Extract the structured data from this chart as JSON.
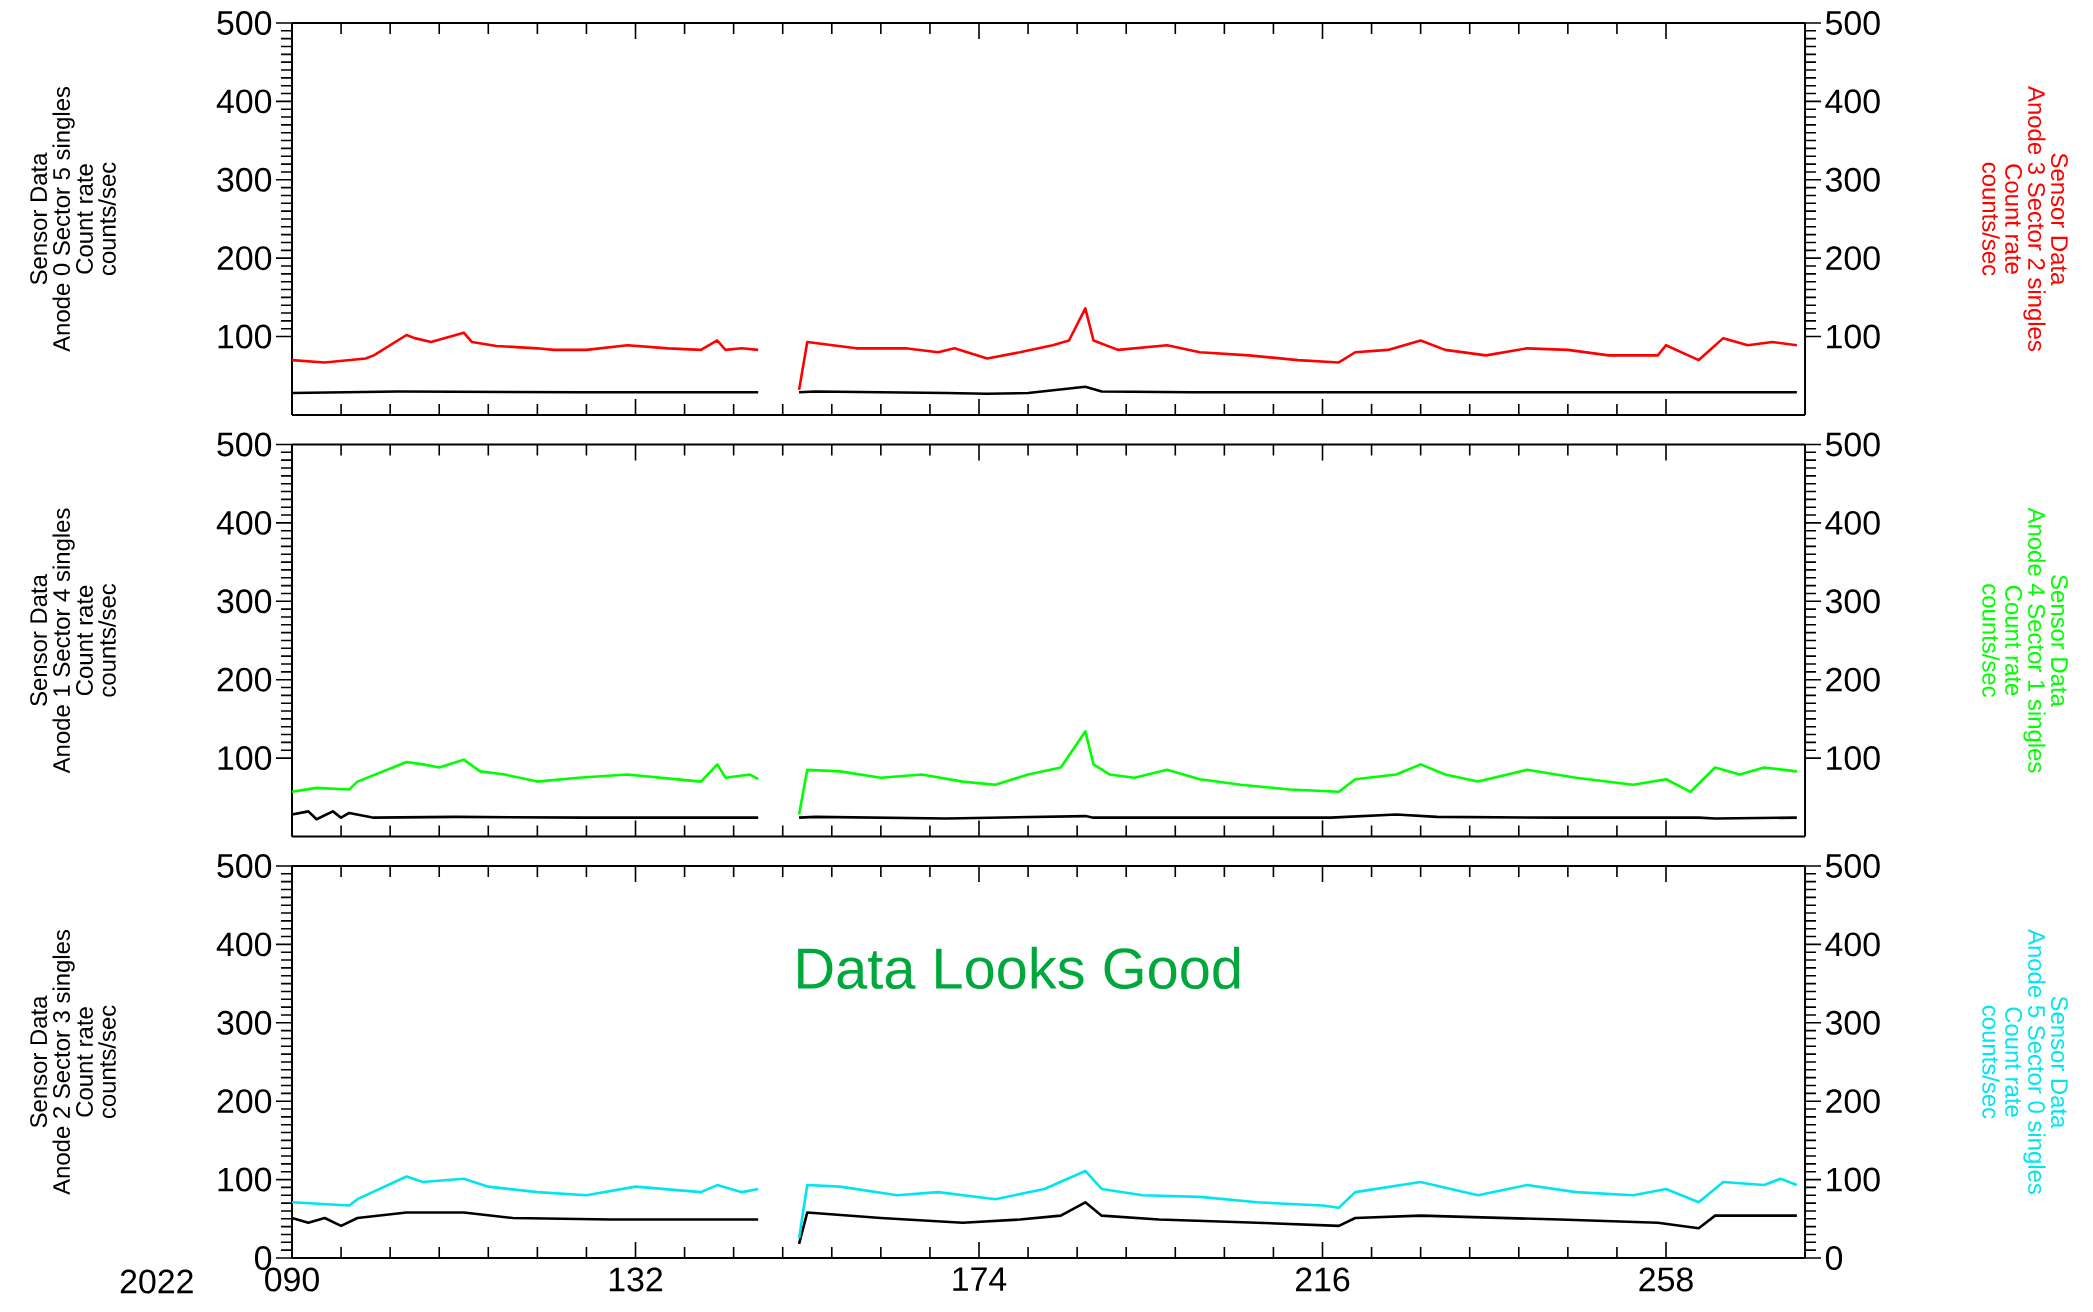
{
  "chart_data": [
    {
      "type": "line",
      "xlim": [
        90,
        275
      ],
      "xticks": [
        {
          "value": 90,
          "label": null
        },
        {
          "value": 132,
          "label": null
        },
        {
          "value": 174,
          "label": null
        },
        {
          "value": 216,
          "label": null
        },
        {
          "value": 258,
          "label": null
        }
      ],
      "ylim": [
        0,
        500
      ],
      "yticks": [
        100,
        200,
        300,
        400,
        500
      ],
      "y2lim": [
        0,
        500
      ],
      "y2ticks": [
        100,
        200,
        300,
        400,
        500
      ],
      "tick_labels": "y",
      "ylabel": "Sensor Data\nAnode 0 Sector 5 singles\nCount rate\ncounts/sec",
      "y2label": "Sensor Data\nAnode 3 Sector 2 singles\nCount rate\ncounts/sec",
      "series": [
        {
          "color": "#000000",
          "x": [
            90,
            103,
            125,
            147,
            149.5,
            152,
            154,
            170,
            175,
            180,
            187,
            189,
            200,
            274
          ],
          "values": [
            28,
            30,
            29,
            29,
            null,
            29,
            30,
            28,
            27,
            28,
            36,
            30,
            29,
            29
          ]
        },
        {
          "color": "#ff0000",
          "axis": "y2",
          "x": [
            90,
            94,
            99,
            100,
            104,
            105,
            107,
            111,
            112,
            115,
            120,
            122,
            126,
            131,
            136,
            140,
            142,
            143,
            145,
            147,
            149.5,
            152,
            153,
            156,
            159,
            165,
            169,
            171,
            175,
            179,
            183,
            185,
            187,
            188,
            191,
            197,
            201,
            207,
            213,
            218,
            220,
            224,
            228,
            231,
            236,
            241,
            246,
            251,
            257,
            258,
            262,
            265,
            268,
            271,
            274
          ],
          "values": [
            70,
            67,
            72,
            76,
            102,
            98,
            93,
            105,
            93,
            88,
            85,
            83,
            83,
            89,
            85,
            83,
            95,
            83,
            85,
            83,
            null,
            32,
            93,
            89,
            85,
            85,
            80,
            85,
            72,
            80,
            89,
            95,
            136,
            95,
            83,
            89,
            80,
            76,
            70,
            67,
            80,
            83,
            95,
            83,
            76,
            85,
            83,
            76,
            76,
            89,
            70,
            98,
            89,
            93,
            89
          ]
        }
      ]
    },
    {
      "type": "line",
      "xlim": [
        90,
        275
      ],
      "xticks": [
        {
          "value": 90,
          "label": null
        },
        {
          "value": 132,
          "label": null
        },
        {
          "value": 174,
          "label": null
        },
        {
          "value": 216,
          "label": null
        },
        {
          "value": 258,
          "label": null
        }
      ],
      "ylim": [
        0,
        500
      ],
      "yticks": [
        100,
        200,
        300,
        400,
        500
      ],
      "y2lim": [
        0,
        500
      ],
      "y2ticks": [
        100,
        200,
        300,
        400,
        500
      ],
      "tick_labels": "y",
      "ylabel": "Sensor Data\nAnode 1 Sector 4 singles\nCount rate\ncounts/sec",
      "y2label": "Sensor Data\nAnode 4 Sector 1 singles\nCount rate\ncounts/sec",
      "series": [
        {
          "color": "#000000",
          "x": [
            90,
            92,
            93,
            95,
            96,
            97,
            100,
            110,
            126,
            147,
            149.5,
            152,
            154,
            170,
            187,
            188,
            200,
            217,
            225,
            230,
            245,
            262,
            264,
            274
          ],
          "values": [
            28,
            32,
            22,
            32,
            24,
            30,
            24,
            25,
            24,
            24,
            null,
            24,
            25,
            23,
            26,
            24,
            24,
            24,
            28,
            25,
            24,
            24,
            23,
            24
          ]
        },
        {
          "color": "#00ff00",
          "axis": "y2",
          "x": [
            90,
            93,
            97,
            98,
            104,
            106,
            108,
            111,
            113,
            116,
            120,
            125,
            131,
            137,
            140,
            142,
            143,
            146,
            147,
            149.5,
            152,
            153,
            157,
            162,
            167,
            172,
            176,
            180,
            184,
            187,
            188,
            190,
            193,
            197,
            201,
            206,
            212,
            218,
            220,
            225,
            228,
            231,
            235,
            241,
            247,
            254,
            258,
            261,
            264,
            267,
            270,
            274
          ],
          "values": [
            57,
            62,
            60,
            70,
            95,
            92,
            88,
            98,
            83,
            79,
            70,
            75,
            79,
            73,
            70,
            92,
            75,
            79,
            73,
            null,
            28,
            85,
            83,
            75,
            79,
            70,
            66,
            79,
            88,
            134,
            92,
            79,
            75,
            85,
            73,
            66,
            60,
            57,
            73,
            79,
            92,
            79,
            70,
            85,
            75,
            66,
            73,
            57,
            88,
            79,
            88,
            83
          ]
        }
      ]
    },
    {
      "type": "line",
      "xlim": [
        90,
        275
      ],
      "xticks": [
        {
          "value": 90,
          "label": "090"
        },
        132,
        174,
        216,
        258
      ],
      "ylim": [
        0,
        500
      ],
      "yticks": [
        0,
        100,
        200,
        300,
        400,
        500
      ],
      "y2lim": [
        0,
        500
      ],
      "y2ticks": [
        0,
        100,
        200,
        300,
        400,
        500
      ],
      "xlabel": "2022",
      "ylabel": "Sensor Data\nAnode 2 Sector 3 singles\nCount rate\ncounts/sec",
      "y2label": "Sensor Data\nAnode 5 Sector 0 singles\nCount rate\ncounts/sec",
      "annotations": [
        "Data Looks Good"
      ],
      "series": [
        {
          "color": "#000000",
          "x": [
            90,
            92,
            94,
            96,
            98,
            104,
            111,
            117,
            129,
            147,
            149.5,
            152,
            153,
            162,
            172,
            179,
            184,
            187,
            189,
            196,
            208,
            218,
            220,
            228,
            245,
            257,
            262,
            264,
            274
          ],
          "values": [
            51,
            45,
            51,
            41,
            51,
            58,
            58,
            51,
            49,
            49,
            null,
            18,
            58,
            51,
            45,
            49,
            54,
            71,
            54,
            49,
            45,
            41,
            51,
            54,
            49,
            45,
            38,
            54,
            54
          ]
        },
        {
          "color": "#00e5ee",
          "axis": "y2",
          "x": [
            90,
            97,
            98,
            104,
            106,
            111,
            114,
            120,
            126,
            132,
            140,
            142,
            145,
            147,
            149.5,
            152,
            153,
            157,
            164,
            169,
            176,
            182,
            187,
            189,
            194,
            201,
            208,
            216,
            218,
            220,
            228,
            235,
            241,
            247,
            254,
            258,
            262,
            265,
            270,
            272,
            274
          ],
          "values": [
            71,
            67,
            75,
            104,
            97,
            101,
            91,
            84,
            80,
            91,
            84,
            93,
            84,
            88,
            null,
            25,
            93,
            91,
            80,
            84,
            75,
            88,
            111,
            88,
            80,
            78,
            71,
            67,
            64,
            84,
            97,
            80,
            93,
            84,
            80,
            88,
            71,
            97,
            93,
            101,
            93
          ]
        }
      ]
    }
  ]
}
